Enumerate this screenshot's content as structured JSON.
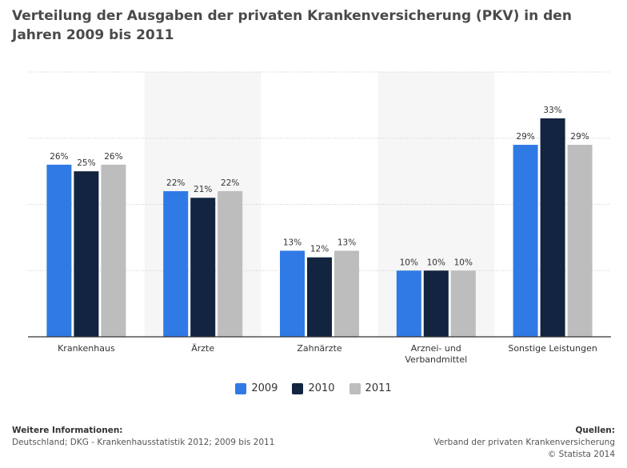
{
  "title": "Verteilung der Ausgaben der privaten Krankenversicherung (PKV) in den Jahren 2009 bis 2011",
  "chart_data": {
    "type": "bar",
    "categories": [
      "Krankenhaus",
      "Ärzte",
      "Zahnärzte",
      "Arznei- und Verbandmittel",
      "Sonstige Leistungen"
    ],
    "series": [
      {
        "name": "2009",
        "values": [
          26,
          22,
          13,
          10,
          29
        ],
        "color": "#2f7ae5"
      },
      {
        "name": "2010",
        "values": [
          25,
          21,
          12,
          10,
          33
        ],
        "color": "#12243f"
      },
      {
        "name": "2011",
        "values": [
          26,
          22,
          13,
          10,
          29
        ],
        "color": "#bdbdbd"
      }
    ],
    "value_suffix": "%",
    "ylim": [
      0,
      40
    ],
    "grid": true,
    "legend_position": "bottom"
  },
  "footer": {
    "info_heading": "Weitere Informationen:",
    "info_text": "Deutschland; DKG - Krankenhausstatistik 2012; 2009 bis 2011",
    "sources_heading": "Quellen:",
    "sources_text": "Verband der privaten Krankenversicherung",
    "copyright": "© Statista 2014"
  }
}
